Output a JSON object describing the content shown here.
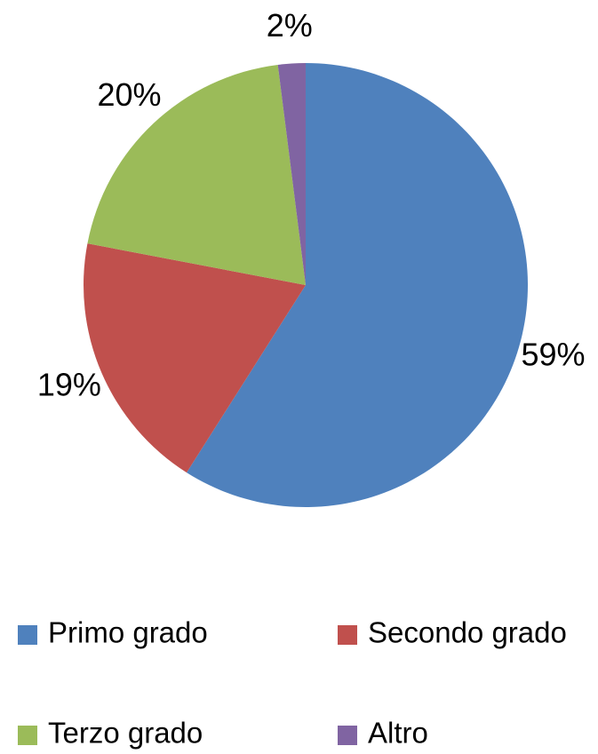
{
  "chart_data": {
    "type": "pie",
    "categories": [
      "Primo grado",
      "Secondo grado",
      "Terzo grado",
      "Altro"
    ],
    "values": [
      59,
      19,
      20,
      2
    ],
    "value_labels": [
      "59%",
      "19%",
      "20%",
      "2%"
    ],
    "colors": [
      "#4f81bd",
      "#c0504d",
      "#9bbb59",
      "#8064a2"
    ],
    "legend": "bottom"
  }
}
